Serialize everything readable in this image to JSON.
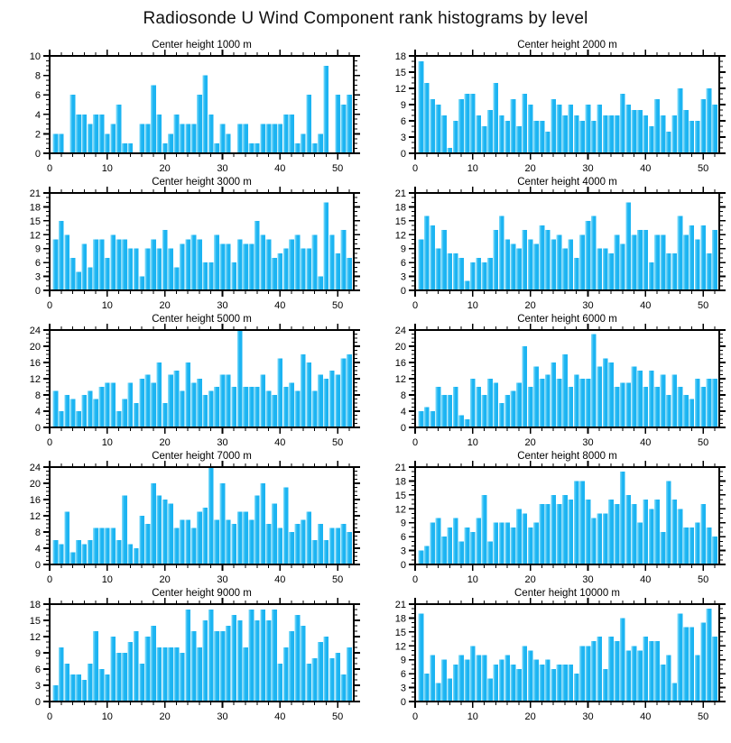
{
  "page_title": "Radiosonde U Wind Component rank histograms by level",
  "colors": {
    "bar": "#1CB4F2",
    "bar_highlight": "#8ADFF9",
    "axis": "#000000",
    "background": "#ffffff"
  },
  "x_axis": {
    "min": 0,
    "max": 52.8,
    "major_ticks": [
      0,
      10,
      20,
      30,
      40,
      50
    ],
    "minor_step": 2,
    "grid": false
  },
  "chart_data": [
    {
      "type": "bar",
      "title": "Center height 1000 m",
      "ylim": [
        0,
        10
      ],
      "ystep": 2,
      "x_start": 1,
      "values": [
        2,
        2,
        0,
        6,
        4,
        4,
        3,
        4,
        4,
        2,
        3,
        5,
        1,
        1,
        0,
        3,
        3,
        7,
        4,
        1,
        2,
        4,
        3,
        3,
        3,
        6,
        8,
        4,
        1,
        3,
        2,
        0,
        3,
        3,
        1,
        1,
        3,
        3,
        3,
        3,
        4,
        4,
        1,
        2,
        6,
        1,
        2,
        9,
        0,
        6,
        5,
        6
      ]
    },
    {
      "type": "bar",
      "title": "Center height 2000 m",
      "ylim": [
        0,
        18
      ],
      "ystep": 3,
      "x_start": 1,
      "values": [
        17,
        13,
        10,
        9,
        7,
        1,
        6,
        10,
        11,
        11,
        7,
        5,
        8,
        13,
        7,
        6,
        10,
        5,
        11,
        9,
        6,
        6,
        4,
        10,
        9,
        7,
        9,
        7,
        6,
        9,
        6,
        9,
        7,
        7,
        7,
        11,
        9,
        8,
        8,
        7,
        5,
        10,
        7,
        4,
        7,
        12,
        8,
        6,
        6,
        10,
        12,
        9
      ]
    },
    {
      "type": "bar",
      "title": "Center height 3000 m",
      "ylim": [
        0,
        21
      ],
      "ystep": 3,
      "x_start": 1,
      "values": [
        11,
        15,
        12,
        7,
        4,
        10,
        5,
        11,
        11,
        7,
        12,
        11,
        11,
        9,
        9,
        3,
        9,
        11,
        9,
        13,
        9,
        5,
        10,
        11,
        12,
        11,
        6,
        6,
        12,
        10,
        10,
        6,
        11,
        10,
        10,
        15,
        12,
        11,
        7,
        8,
        9,
        11,
        12,
        9,
        9,
        12,
        3,
        19,
        12,
        8,
        13,
        7
      ]
    },
    {
      "type": "bar",
      "title": "Center height 4000 m",
      "ylim": [
        0,
        21
      ],
      "ystep": 3,
      "x_start": 1,
      "values": [
        11,
        16,
        14,
        9,
        13,
        8,
        8,
        7,
        2,
        6,
        7,
        6,
        7,
        13,
        16,
        11,
        10,
        9,
        13,
        11,
        10,
        14,
        13,
        11,
        12,
        9,
        11,
        7,
        12,
        15,
        16,
        9,
        9,
        8,
        12,
        10,
        19,
        12,
        13,
        13,
        6,
        12,
        12,
        8,
        8,
        16,
        12,
        14,
        11,
        14,
        8,
        13
      ]
    },
    {
      "type": "bar",
      "title": "Center height 5000 m",
      "ylim": [
        0,
        24
      ],
      "ystep": 4,
      "x_start": 1,
      "values": [
        9,
        4,
        8,
        7,
        4,
        8,
        9,
        7,
        10,
        11,
        11,
        4,
        7,
        11,
        6,
        12,
        13,
        11,
        16,
        6,
        13,
        14,
        9,
        16,
        11,
        12,
        8,
        9,
        10,
        13,
        13,
        10,
        24,
        10,
        10,
        10,
        13,
        9,
        8,
        17,
        10,
        11,
        9,
        18,
        16,
        9,
        13,
        12,
        14,
        13,
        17,
        18
      ]
    },
    {
      "type": "bar",
      "title": "Center height 6000 m",
      "ylim": [
        0,
        24
      ],
      "ystep": 4,
      "x_start": 1,
      "values": [
        4,
        5,
        4,
        10,
        8,
        8,
        10,
        3,
        2,
        12,
        10,
        8,
        12,
        11,
        6,
        8,
        9,
        11,
        20,
        10,
        15,
        12,
        13,
        16,
        12,
        18,
        10,
        13,
        12,
        12,
        23,
        15,
        17,
        16,
        10,
        11,
        11,
        15,
        14,
        10,
        14,
        10,
        13,
        8,
        13,
        10,
        8,
        7,
        12,
        10,
        12,
        12
      ]
    },
    {
      "type": "bar",
      "title": "Center height 7000 m",
      "ylim": [
        0,
        24
      ],
      "ystep": 4,
      "x_start": 1,
      "values": [
        6,
        5,
        13,
        3,
        6,
        5,
        6,
        9,
        9,
        9,
        9,
        6,
        17,
        5,
        4,
        12,
        10,
        20,
        17,
        16,
        15,
        9,
        11,
        11,
        9,
        13,
        14,
        24,
        11,
        20,
        11,
        10,
        13,
        13,
        11,
        17,
        20,
        10,
        15,
        9,
        19,
        8,
        10,
        11,
        13,
        6,
        10,
        6,
        9,
        9,
        10,
        8
      ]
    },
    {
      "type": "bar",
      "title": "Center height 8000 m",
      "ylim": [
        0,
        21
      ],
      "ystep": 3,
      "x_start": 1,
      "values": [
        3,
        4,
        9,
        10,
        6,
        8,
        10,
        5,
        8,
        7,
        10,
        15,
        5,
        9,
        9,
        9,
        8,
        12,
        11,
        8,
        9,
        13,
        13,
        15,
        13,
        15,
        14,
        18,
        18,
        14,
        10,
        11,
        11,
        14,
        13,
        20,
        15,
        13,
        9,
        14,
        12,
        14,
        7,
        18,
        14,
        12,
        8,
        8,
        9,
        13,
        8,
        6
      ]
    },
    {
      "type": "bar",
      "title": "Center height 9000 m",
      "ylim": [
        0,
        18
      ],
      "ystep": 3,
      "x_start": 1,
      "values": [
        3,
        10,
        7,
        5,
        5,
        4,
        7,
        13,
        6,
        5,
        12,
        9,
        9,
        11,
        13,
        7,
        12,
        14,
        10,
        10,
        10,
        10,
        9,
        17,
        13,
        10,
        15,
        17,
        13,
        13,
        14,
        16,
        15,
        10,
        17,
        15,
        17,
        15,
        17,
        7,
        10,
        13,
        16,
        14,
        7,
        8,
        11,
        12,
        8,
        9,
        5,
        10
      ]
    },
    {
      "type": "bar",
      "title": "Center height 10000 m",
      "ylim": [
        0,
        21
      ],
      "ystep": 3,
      "x_start": 1,
      "values": [
        19,
        6,
        10,
        4,
        9,
        5,
        8,
        10,
        9,
        12,
        10,
        10,
        5,
        8,
        9,
        10,
        8,
        7,
        12,
        11,
        9,
        8,
        9,
        7,
        8,
        8,
        8,
        6,
        12,
        12,
        13,
        14,
        7,
        14,
        13,
        18,
        11,
        12,
        11,
        14,
        13,
        13,
        8,
        10,
        4,
        19,
        16,
        16,
        10,
        17,
        20,
        14
      ]
    }
  ]
}
